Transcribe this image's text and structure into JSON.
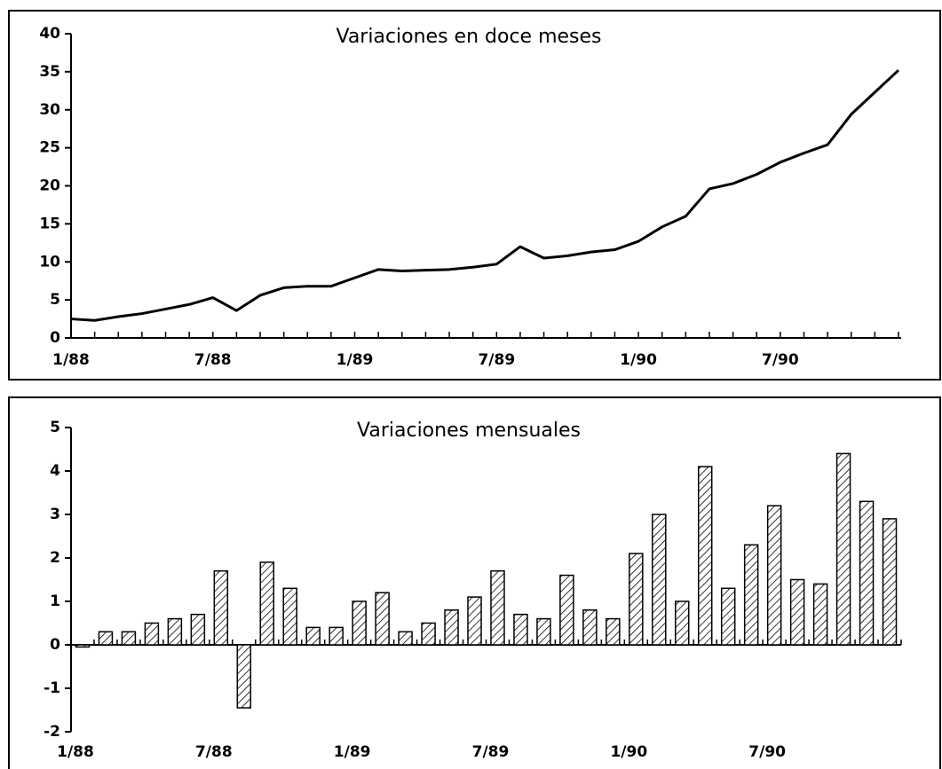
{
  "chart_data": [
    {
      "type": "line",
      "title": "Variaciones en doce meses",
      "categories": [
        "1/88",
        null,
        null,
        null,
        null,
        null,
        "7/88",
        null,
        null,
        null,
        null,
        null,
        "1/89",
        null,
        null,
        null,
        null,
        null,
        "7/89",
        null,
        null,
        null,
        null,
        null,
        "1/90",
        null,
        null,
        null,
        null,
        null,
        "7/90",
        null,
        null,
        null,
        null,
        null
      ],
      "values": [
        2.5,
        2.3,
        2.8,
        3.2,
        3.8,
        4.4,
        5.3,
        3.6,
        5.6,
        6.6,
        6.8,
        6.8,
        7.9,
        9.0,
        8.8,
        8.9,
        9.0,
        9.3,
        9.7,
        12.0,
        10.5,
        10.8,
        11.3,
        11.6,
        12.7,
        14.6,
        16.0,
        19.6,
        20.3,
        21.5,
        23.1,
        24.3,
        25.4,
        29.4,
        32.3,
        35.2
      ],
      "color": "#000000",
      "ylim": [
        0,
        40
      ],
      "yticks": [
        0,
        5,
        10,
        15,
        20,
        25,
        30,
        35,
        40
      ]
    },
    {
      "type": "bar",
      "title": "Variaciones mensuales",
      "categories": [
        "1/88",
        null,
        null,
        null,
        null,
        null,
        "7/88",
        null,
        null,
        null,
        null,
        null,
        "1/89",
        null,
        null,
        null,
        null,
        null,
        "7/89",
        null,
        null,
        null,
        null,
        null,
        "1/90",
        null,
        null,
        null,
        null,
        null,
        "7/90",
        null,
        null,
        null,
        null,
        null
      ],
      "values": [
        -0.05,
        0.3,
        0.3,
        0.5,
        0.6,
        0.7,
        1.7,
        -1.45,
        1.9,
        1.3,
        0.4,
        0.4,
        1.0,
        1.2,
        0.3,
        0.5,
        0.8,
        1.1,
        1.7,
        0.7,
        0.6,
        1.6,
        0.8,
        0.6,
        2.1,
        3.0,
        1.0,
        4.1,
        1.3,
        2.3,
        3.2,
        1.5,
        1.4,
        4.4,
        3.3,
        2.9
      ],
      "color": "#000000",
      "ylim": [
        -2,
        5
      ],
      "yticks": [
        -2,
        -1,
        0,
        1,
        2,
        3,
        4,
        5
      ]
    }
  ]
}
